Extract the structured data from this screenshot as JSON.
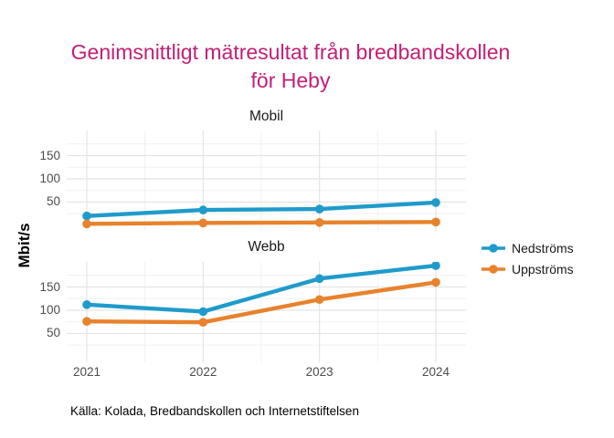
{
  "title": {
    "line1": "Genimsnittligt mätresultat från bredbandskollen",
    "line2": "för Heby",
    "color": "#C22076"
  },
  "y_axis_label": "Mbit/s",
  "caption": "Källa: Kolada, Bredbandskollen och Internetstiftelsen",
  "legend": {
    "items": [
      {
        "label": "Nedströms",
        "color": "#1F9BCB"
      },
      {
        "label": "Uppströms",
        "color": "#E8822C"
      }
    ]
  },
  "colors": {
    "grid_major": "#E4E4E4",
    "grid_minor": "#F1F1F1",
    "tick_text": "#4D4D4D"
  },
  "chart_data": [
    {
      "type": "line",
      "facet": "Mobil",
      "categories": [
        "2021",
        "2022",
        "2023",
        "2024"
      ],
      "series": [
        {
          "name": "Nedströms",
          "color": "#1F9BCB",
          "values": [
            20,
            33,
            35,
            49
          ]
        },
        {
          "name": "Uppströms",
          "color": "#E8822C",
          "values": [
            3,
            5,
            6,
            7
          ]
        }
      ],
      "ylabel": "Mbit/s",
      "yticks": [
        50,
        100,
        150
      ],
      "yticks_minor": [
        25,
        75,
        125,
        175
      ],
      "ylim": [
        -12,
        204
      ],
      "grid": "on",
      "legend_position": "right"
    },
    {
      "type": "line",
      "facet": "Webb",
      "categories": [
        "2021",
        "2022",
        "2023",
        "2024"
      ],
      "series": [
        {
          "name": "Nedströms",
          "color": "#1F9BCB",
          "values": [
            112,
            97,
            168,
            196
          ]
        },
        {
          "name": "Uppströms",
          "color": "#E8822C",
          "values": [
            76,
            74,
            123,
            160
          ]
        }
      ],
      "ylabel": "Mbit/s",
      "yticks": [
        50,
        100,
        150
      ],
      "yticks_minor": [
        25,
        75,
        125,
        175
      ],
      "ylim": [
        -12,
        204
      ],
      "grid": "on",
      "legend_position": "right"
    }
  ]
}
